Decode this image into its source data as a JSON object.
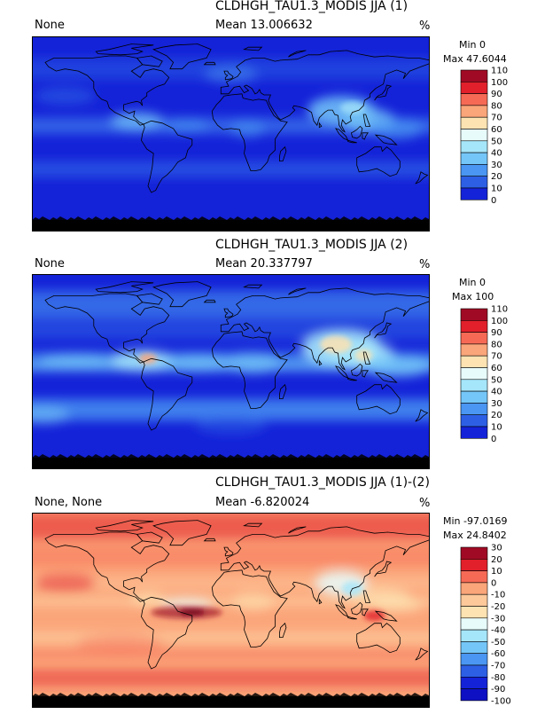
{
  "panels": [
    {
      "title": "CLDHGH_TAU1.3_MODIS JJA (1)",
      "left_label": "None",
      "mean_label": "Mean 13.006632",
      "units": "%",
      "min_label": "Min 0",
      "max_label": "Max 47.6044",
      "kind": "seq",
      "colorbar": {
        "ticks": [
          "110",
          "100",
          "90",
          "80",
          "70",
          "60",
          "50",
          "40",
          "30",
          "20",
          "10",
          "0"
        ],
        "colors": [
          "#a10a24",
          "#e1202b",
          "#f66a55",
          "#fba57a",
          "#fde3b2",
          "#e7fbfb",
          "#a6e6fa",
          "#74c6f8",
          "#4a96f2",
          "#2d5fe5",
          "#1422d8"
        ]
      }
    },
    {
      "title": "CLDHGH_TAU1.3_MODIS JJA (2)",
      "left_label": "None",
      "mean_label": "Mean 20.337797",
      "units": "%",
      "min_label": "Min 0",
      "max_label": "Max 100",
      "kind": "seq",
      "colorbar": {
        "ticks": [
          "110",
          "100",
          "90",
          "80",
          "70",
          "60",
          "50",
          "40",
          "30",
          "20",
          "10",
          "0"
        ],
        "colors": [
          "#a10a24",
          "#e1202b",
          "#f66a55",
          "#fba57a",
          "#fde3b2",
          "#e7fbfb",
          "#a6e6fa",
          "#74c6f8",
          "#4a96f2",
          "#2d5fe5",
          "#1422d8"
        ]
      }
    },
    {
      "title": "CLDHGH_TAU1.3_MODIS JJA (1)-(2)",
      "left_label": "None, None",
      "mean_label": "Mean -6.820024",
      "units": "%",
      "min_label": "Min -97.0169",
      "max_label": "Max 24.8402",
      "kind": "div",
      "colorbar": {
        "ticks": [
          "30",
          "20",
          "10",
          "0",
          "-10",
          "-20",
          "-30",
          "-40",
          "-50",
          "-60",
          "-70",
          "-80",
          "-90",
          "-100"
        ],
        "colors": [
          "#a10a24",
          "#e1202b",
          "#f66a55",
          "#fba57a",
          "#fdc89a",
          "#fde3b2",
          "#e7fbfb",
          "#a6e6fa",
          "#74c6f8",
          "#4a96f2",
          "#2d5fe5",
          "#1422d8",
          "#0e10c4"
        ]
      }
    }
  ]
}
